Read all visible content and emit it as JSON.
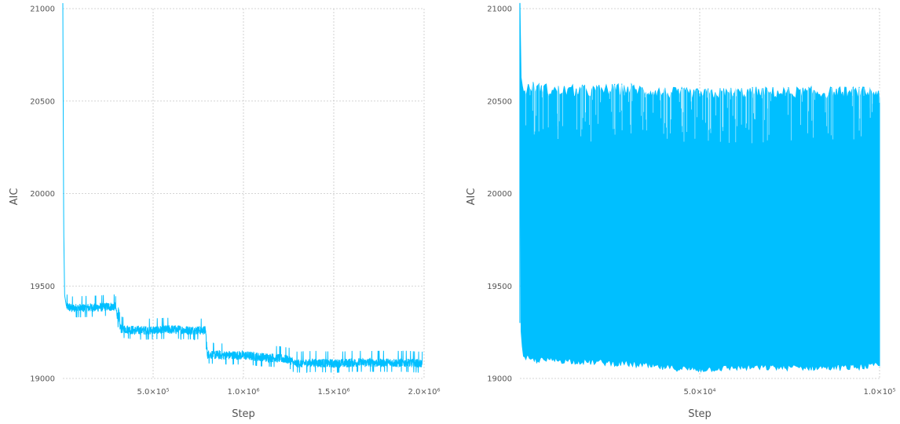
{
  "chart_data": [
    {
      "type": "line",
      "title": "",
      "xlabel": "Step",
      "ylabel": "AIC",
      "xlim": [
        0,
        2000000
      ],
      "ylim": [
        19000,
        21000
      ],
      "grid": true,
      "color": "#00bfff",
      "x_ticks": [
        {
          "value": 500000,
          "label": "5.0×10⁵"
        },
        {
          "value": 1000000,
          "label": "1.0×10⁶"
        },
        {
          "value": 1500000,
          "label": "1.5×10⁶"
        },
        {
          "value": 2000000,
          "label": "2.0×10⁶"
        }
      ],
      "y_ticks": [
        {
          "value": 19000,
          "label": "19000"
        },
        {
          "value": 19500,
          "label": "19500"
        },
        {
          "value": 20000,
          "label": "20000"
        },
        {
          "value": 20500,
          "label": "20500"
        },
        {
          "value": 21000,
          "label": "21000"
        }
      ],
      "series": [
        {
          "x": [
            0,
            2000,
            5000,
            10000,
            20000,
            50000,
            100000,
            200000,
            290000,
            320000,
            400000,
            500000,
            600000,
            700000,
            790000,
            800000,
            900000,
            1000000,
            1100000,
            1200000,
            1260000,
            1280000,
            1400000,
            1500000,
            1600000,
            1700000,
            1800000,
            1900000,
            1990000
          ],
          "y": [
            21030,
            20500,
            19800,
            19450,
            19390,
            19380,
            19380,
            19385,
            19390,
            19270,
            19260,
            19260,
            19265,
            19260,
            19260,
            19130,
            19125,
            19125,
            19115,
            19110,
            19100,
            19080,
            19085,
            19080,
            19085,
            19085,
            19085,
            19085,
            19080
          ]
        }
      ]
    },
    {
      "type": "line",
      "title": "",
      "xlabel": "Step",
      "ylabel": "AIC",
      "xlim": [
        0,
        100000
      ],
      "ylim": [
        19000,
        21000
      ],
      "grid": true,
      "color": "#00bfff",
      "x_ticks": [
        {
          "value": 50000,
          "label": "5.0×10⁴"
        },
        {
          "value": 100000,
          "label": "1.0×10⁵"
        }
      ],
      "y_ticks": [
        {
          "value": 19000,
          "label": "19000"
        },
        {
          "value": 19500,
          "label": "19500"
        },
        {
          "value": 20000,
          "label": "20000"
        },
        {
          "value": 20500,
          "label": "20500"
        },
        {
          "value": 21000,
          "label": "21000"
        }
      ],
      "series": [
        {
          "x": [
            0,
            200,
            500,
            1000,
            3000,
            10000,
            20000,
            30000,
            40000,
            50000,
            60000,
            70000,
            80000,
            90000,
            100000
          ],
          "y": [
            21030,
            20650,
            20600,
            20550,
            20580,
            20560,
            20560,
            20570,
            20550,
            20540,
            20550,
            20550,
            20550,
            20550,
            20550
          ],
          "y_low": [
            21030,
            19300,
            19200,
            19120,
            19100,
            19100,
            19090,
            19080,
            19060,
            19050,
            19060,
            19060,
            19060,
            19060,
            19070
          ]
        }
      ]
    }
  ]
}
